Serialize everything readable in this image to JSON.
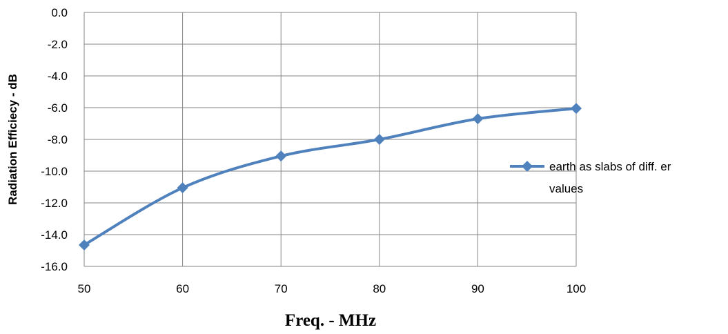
{
  "chart_data": {
    "type": "line",
    "title": "",
    "xlabel": "Freq. - MHz",
    "ylabel": "Radiation Efficiecy - dB",
    "x": [
      50,
      60,
      70,
      80,
      90,
      100
    ],
    "xlim": [
      50,
      100
    ],
    "ylim": [
      -16.0,
      0.0
    ],
    "x_ticks": [
      "50",
      "60",
      "70",
      "80",
      "90",
      "100"
    ],
    "y_ticks": [
      "0.0",
      "-2.0",
      "-4.0",
      "-6.0",
      "-8.0",
      "-10.0",
      "-12.0",
      "-14.0",
      "-16.0"
    ],
    "series": [
      {
        "name": "earth as slabs of diff. er values",
        "legend_lines": [
          "earth as slabs of diff. er",
          "values"
        ],
        "values": [
          -14.65,
          -11.05,
          -9.05,
          -8.0,
          -6.7,
          -6.05
        ],
        "color": "#4f81bd",
        "marker": "diamond",
        "smooth": true
      }
    ],
    "grid": true,
    "legend_position": "right"
  }
}
